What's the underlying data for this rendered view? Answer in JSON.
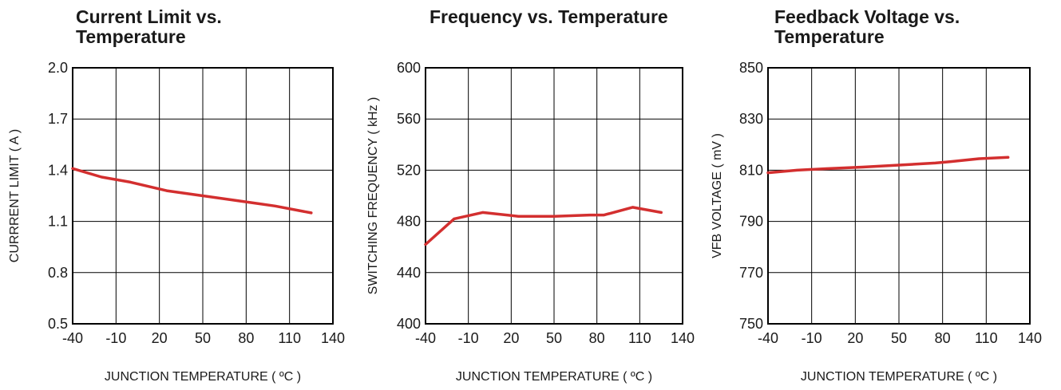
{
  "style": {
    "line_color": "#d32f2f",
    "grid_color": "#000000"
  },
  "chart_data": [
    {
      "type": "line",
      "title_lines": [
        "Current Limit vs.",
        "Temperature"
      ],
      "xlabel": "JUNCTION TEMPERATURE ( ºC )",
      "ylabel": "CURRRENT LIMIT ( A )",
      "xlim": [
        -40,
        140
      ],
      "ylim": [
        0.5,
        2.0
      ],
      "xticks": [
        "-40",
        "-10",
        "20",
        "50",
        "80",
        "110",
        "140"
      ],
      "yticks": [
        "0.5",
        "0.8",
        "1.1",
        "1.4",
        "1.7",
        "2.0"
      ],
      "grid": true,
      "series": [
        {
          "x": [
            -40,
            -20,
            0,
            25,
            50,
            75,
            100,
            125
          ],
          "y": [
            1.41,
            1.36,
            1.33,
            1.28,
            1.25,
            1.22,
            1.19,
            1.15
          ]
        }
      ]
    },
    {
      "type": "line",
      "title_lines": [
        "Frequency vs. Temperature"
      ],
      "xlabel": "JUNCTION TEMPERATURE ( ºC )",
      "ylabel": "SWITCHING FREQUENCY ( kHz )",
      "xlim": [
        -40,
        140
      ],
      "ylim": [
        400,
        600
      ],
      "xticks": [
        "-40",
        "-10",
        "20",
        "50",
        "80",
        "110",
        "140"
      ],
      "yticks": [
        "400",
        "440",
        "480",
        "520",
        "560",
        "600"
      ],
      "grid": true,
      "series": [
        {
          "x": [
            -40,
            -20,
            0,
            25,
            50,
            75,
            85,
            105,
            125
          ],
          "y": [
            462,
            482,
            487,
            484,
            484,
            485,
            485,
            491,
            487
          ]
        }
      ]
    },
    {
      "type": "line",
      "title_lines": [
        "Feedback Voltage vs.",
        "Temperature"
      ],
      "xlabel": "JUNCTION TEMPERATURE ( ºC )",
      "ylabel": "VFB VOLTAGE ( mV )",
      "xlim": [
        -40,
        140
      ],
      "ylim": [
        750,
        850
      ],
      "xticks": [
        "-40",
        "-10",
        "20",
        "50",
        "80",
        "110",
        "140"
      ],
      "yticks": [
        "750",
        "770",
        "790",
        "810",
        "830",
        "850"
      ],
      "grid": true,
      "series": [
        {
          "x": [
            -40,
            -20,
            0,
            25,
            50,
            75,
            85,
            105,
            125
          ],
          "y": [
            809,
            810,
            810.6,
            811.2,
            812,
            812.8,
            813.3,
            814.5,
            815
          ]
        }
      ]
    }
  ]
}
